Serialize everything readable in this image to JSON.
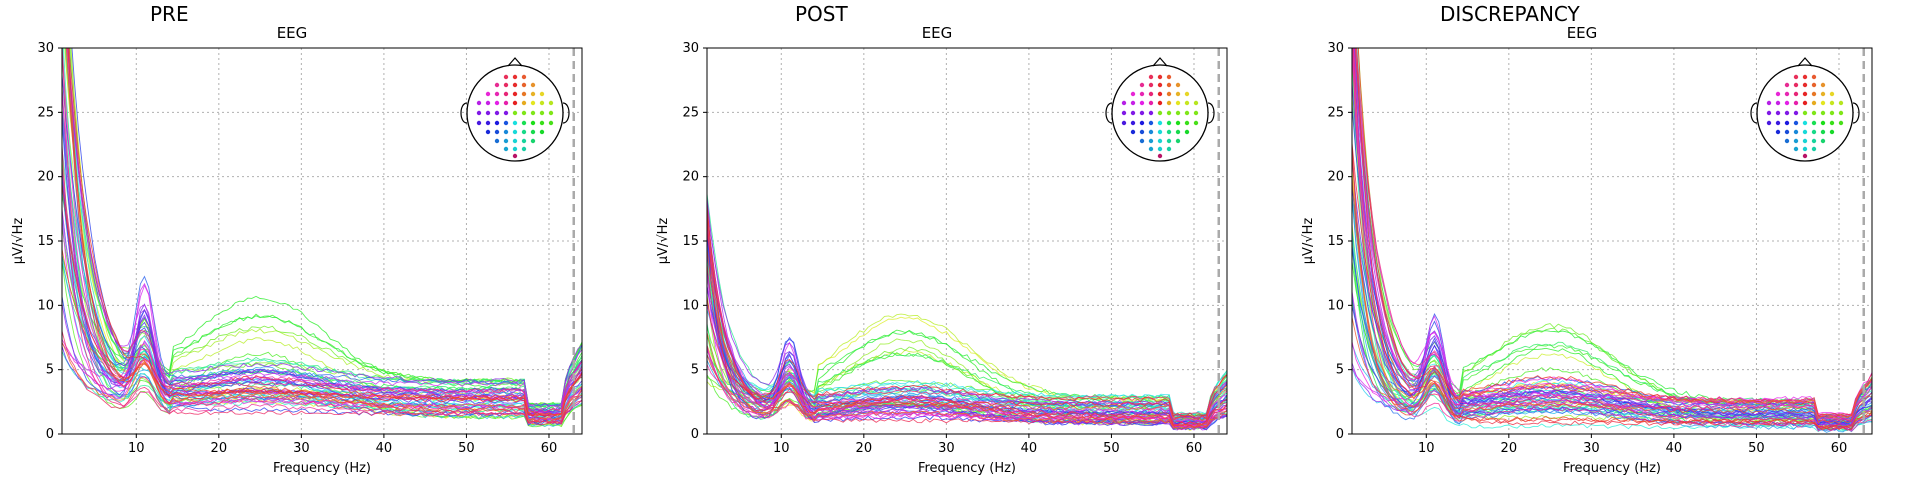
{
  "figure": {
    "background": "#ffffff"
  },
  "chart_data": [
    {
      "type": "line",
      "panel_title": "PRE",
      "title": "EEG",
      "xlabel": "Frequency (Hz)",
      "ylabel": "µV/√Hz",
      "xlim": [
        1,
        64
      ],
      "ylim": [
        0,
        30
      ],
      "xticks": [
        10,
        20,
        30,
        40,
        50,
        60
      ],
      "yticks": [
        0,
        5,
        10,
        15,
        20,
        25,
        30
      ],
      "grid": true,
      "vline_x": 63,
      "sensor_inset": "top-right",
      "profile": {
        "low_start": 22,
        "low_min": 5,
        "low_max": 45,
        "decay": 2.6,
        "alpha_amp": 4.5,
        "alpha_freq": 11,
        "plateau_min": 1.2,
        "plateau_max": 4.2,
        "beta_amp": 2.0,
        "green_hi": 6.5,
        "n_lines": 60
      }
    },
    {
      "type": "line",
      "panel_title": "POST",
      "title": "EEG",
      "xlabel": "Frequency (Hz)",
      "ylabel": "µV/√Hz",
      "xlim": [
        1,
        64
      ],
      "ylim": [
        0,
        30
      ],
      "xticks": [
        10,
        20,
        30,
        40,
        50,
        60
      ],
      "yticks": [
        0,
        5,
        10,
        15,
        20,
        25,
        30
      ],
      "grid": true,
      "vline_x": 63,
      "sensor_inset": "top-right",
      "profile": {
        "low_start": 10,
        "low_min": 4,
        "low_max": 19,
        "decay": 2.2,
        "alpha_amp": 3.0,
        "alpha_freq": 11,
        "plateau_min": 0.8,
        "plateau_max": 3.0,
        "beta_amp": 1.5,
        "green_hi": 6.0,
        "n_lines": 60
      }
    },
    {
      "type": "line",
      "panel_title": "DISCREPANCY",
      "title": "EEG",
      "xlabel": "Frequency (Hz)",
      "ylabel": "µV/√Hz",
      "xlim": [
        1,
        64
      ],
      "ylim": [
        0,
        30
      ],
      "xticks": [
        10,
        20,
        30,
        40,
        50,
        60
      ],
      "yticks": [
        0,
        5,
        10,
        15,
        20,
        25,
        30
      ],
      "grid": true,
      "vline_x": 63,
      "sensor_inset": "top-right",
      "profile": {
        "low_start": 18,
        "low_min": 4,
        "low_max": 40,
        "decay": 2.4,
        "alpha_amp": 3.5,
        "alpha_freq": 11,
        "plateau_min": 0.5,
        "plateau_max": 2.8,
        "beta_amp": 2.5,
        "green_hi": 6.0,
        "n_lines": 60
      }
    }
  ]
}
